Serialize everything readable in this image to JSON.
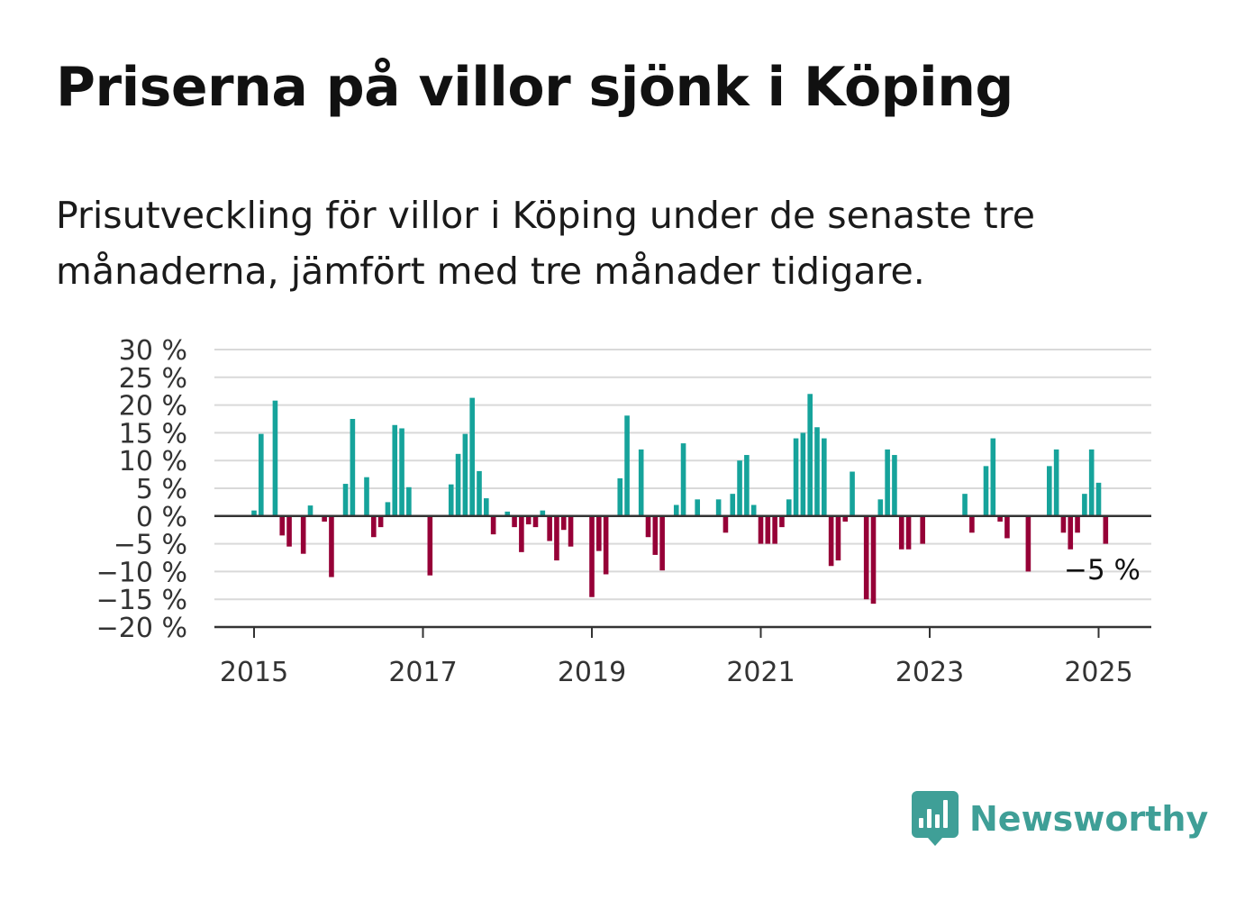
{
  "header": {
    "title": "Priserna på villor sjönk i Köping",
    "subtitle": "Prisutveckling för villor i Köping under de senaste tre månaderna, jämfört med tre månader tidigare."
  },
  "branding": {
    "name": "Newsworthy",
    "color": "#3f9f97",
    "icon": "bar-chart-speech-bubble-icon"
  },
  "colors": {
    "positive": "#16a39b",
    "negative": "#960037",
    "grid": "#d9d9d9",
    "axis": "#333333"
  },
  "chart_data": {
    "type": "bar",
    "title": "Priserna på villor sjönk i Köping",
    "subtitle": "Prisutveckling för villor i Köping under de senaste tre månaderna, jämfört med tre månader tidigare.",
    "xlabel": "",
    "ylabel": "",
    "ylim": [
      -20,
      30
    ],
    "y_ticks": [
      30,
      25,
      20,
      15,
      10,
      5,
      0,
      -5,
      -10,
      -15,
      -20
    ],
    "y_tick_labels": [
      "30 %",
      "25 %",
      "20 %",
      "15 %",
      "10 %",
      "5 %",
      "0 %",
      "−5 %",
      "−10 %",
      "−15 %",
      "−20 %"
    ],
    "x_ticks": [
      "2015",
      "2017",
      "2019",
      "2021",
      "2023",
      "2025"
    ],
    "grid": true,
    "annotation": "−5 %",
    "series": [
      {
        "values": [
          [
            "2015-01",
            1
          ],
          [
            "2015-02",
            14.8
          ],
          [
            "2015-04",
            20.8
          ],
          [
            "2015-05",
            -3.5
          ],
          [
            "2015-06",
            -5.5
          ],
          [
            "2015-08",
            -6.8
          ],
          [
            "2015-09",
            1.9
          ],
          [
            "2015-11",
            -1
          ],
          [
            "2015-12",
            -11
          ],
          [
            "2016-02",
            5.8
          ],
          [
            "2016-03",
            17.5
          ],
          [
            "2016-05",
            7
          ],
          [
            "2016-06",
            -3.8
          ],
          [
            "2016-07",
            -2
          ],
          [
            "2016-08",
            2.5
          ],
          [
            "2016-09",
            16.4
          ],
          [
            "2016-10",
            15.8
          ],
          [
            "2016-11",
            5.2
          ],
          [
            "2017-02",
            -10.7
          ],
          [
            "2017-05",
            5.7
          ],
          [
            "2017-06",
            11.2
          ],
          [
            "2017-07",
            14.8
          ],
          [
            "2017-08",
            21.3
          ],
          [
            "2017-09",
            8.1
          ],
          [
            "2017-10",
            3.2
          ],
          [
            "2017-11",
            -3.3
          ],
          [
            "2018-01",
            0.8
          ],
          [
            "2018-02",
            -2
          ],
          [
            "2018-03",
            -6.5
          ],
          [
            "2018-04",
            -1.5
          ],
          [
            "2018-05",
            -2
          ],
          [
            "2018-06",
            1
          ],
          [
            "2018-07",
            -4.5
          ],
          [
            "2018-08",
            -8
          ],
          [
            "2018-09",
            -2.5
          ],
          [
            "2018-10",
            -5.5
          ],
          [
            "2019-01",
            -14.6
          ],
          [
            "2019-02",
            -6.3
          ],
          [
            "2019-03",
            -10.5
          ],
          [
            "2019-05",
            6.8
          ],
          [
            "2019-06",
            18.1
          ],
          [
            "2019-08",
            12
          ],
          [
            "2019-09",
            -3.8
          ],
          [
            "2019-10",
            -7
          ],
          [
            "2019-11",
            -9.8
          ],
          [
            "2020-01",
            2
          ],
          [
            "2020-02",
            13.1
          ],
          [
            "2020-04",
            3
          ],
          [
            "2020-07",
            3
          ],
          [
            "2020-08",
            -3
          ],
          [
            "2020-09",
            4
          ],
          [
            "2020-10",
            10
          ],
          [
            "2020-11",
            11
          ],
          [
            "2020-12",
            2
          ],
          [
            "2021-01",
            -5
          ],
          [
            "2021-02",
            -5
          ],
          [
            "2021-03",
            -5
          ],
          [
            "2021-04",
            -2
          ],
          [
            "2021-05",
            3
          ],
          [
            "2021-06",
            14
          ],
          [
            "2021-07",
            15
          ],
          [
            "2021-08",
            22
          ],
          [
            "2021-09",
            16
          ],
          [
            "2021-10",
            14
          ],
          [
            "2021-11",
            -9
          ],
          [
            "2021-12",
            -8
          ],
          [
            "2022-01",
            -1
          ],
          [
            "2022-02",
            8
          ],
          [
            "2022-04",
            -15
          ],
          [
            "2022-05",
            -15.8
          ],
          [
            "2022-06",
            3
          ],
          [
            "2022-07",
            12
          ],
          [
            "2022-08",
            11
          ],
          [
            "2022-09",
            -6
          ],
          [
            "2022-10",
            -6
          ],
          [
            "2022-12",
            -5
          ],
          [
            "2023-06",
            4
          ],
          [
            "2023-07",
            -3
          ],
          [
            "2023-09",
            9
          ],
          [
            "2023-10",
            14
          ],
          [
            "2023-11",
            -1
          ],
          [
            "2023-12",
            -4
          ],
          [
            "2024-03",
            -10
          ],
          [
            "2024-06",
            9
          ],
          [
            "2024-07",
            12
          ],
          [
            "2024-08",
            -3
          ],
          [
            "2024-09",
            -6
          ],
          [
            "2024-10",
            -3
          ],
          [
            "2024-11",
            4
          ],
          [
            "2024-12",
            12
          ],
          [
            "2025-01",
            6
          ],
          [
            "2025-02",
            -5
          ]
        ]
      }
    ]
  }
}
